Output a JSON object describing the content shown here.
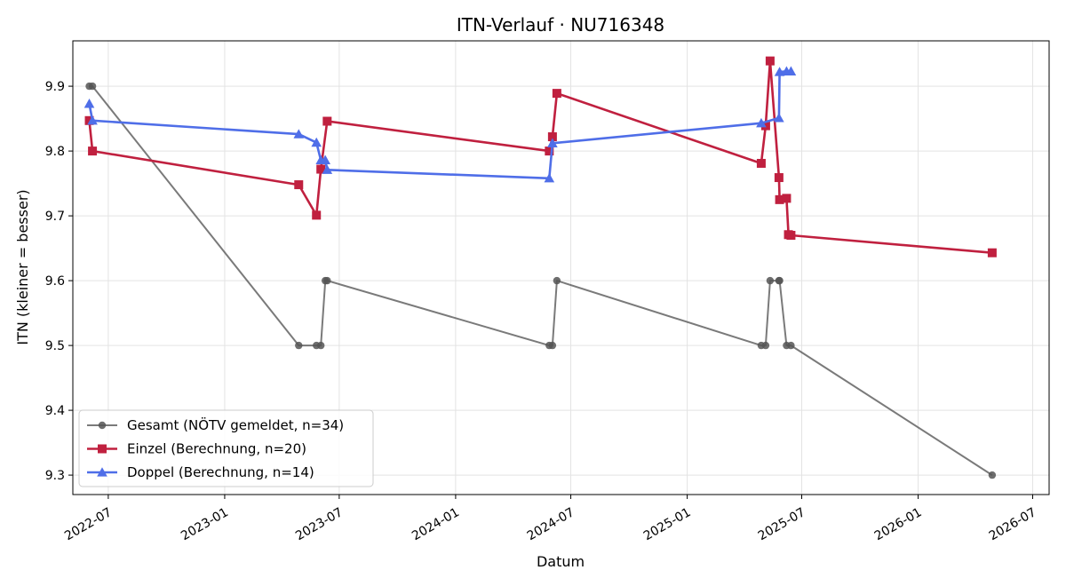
{
  "chart_data": {
    "type": "line",
    "title": "ITN-Verlauf · NU716348",
    "xlabel": "Datum",
    "ylabel": "ITN  (kleiner = besser)",
    "x_ticks": [
      "2022-07",
      "2023-01",
      "2023-07",
      "2024-01",
      "2024-07",
      "2025-01",
      "2025-07",
      "2026-01",
      "2026-07"
    ],
    "y_ticks": [
      "9.3",
      "9.4",
      "9.5",
      "9.6",
      "9.7",
      "9.8",
      "9.9"
    ],
    "ylim": [
      9.27,
      9.97
    ],
    "xlim": [
      "2022-05-06",
      "2026-07-27"
    ],
    "grid": true,
    "legend_position": "lower-left",
    "series": [
      {
        "name": "Gesamt (NÖTV gemeldet, n=34)",
        "color": "#555555",
        "marker": "circle",
        "x": [
          "2022-06-01",
          "2022-06-06",
          "2023-04-28",
          "2023-05-26",
          "2023-06-02",
          "2023-06-09",
          "2023-06-12",
          "2024-05-28",
          "2024-06-02",
          "2024-06-09",
          "2025-04-28",
          "2025-05-05",
          "2025-05-12",
          "2025-05-26",
          "2025-05-27",
          "2025-06-07",
          "2025-06-14",
          "2026-04-28"
        ],
        "values": [
          9.9,
          9.9,
          9.5,
          9.5,
          9.5,
          9.6,
          9.6,
          9.5,
          9.5,
          9.6,
          9.5,
          9.5,
          9.6,
          9.6,
          9.6,
          9.5,
          9.5,
          9.3
        ]
      },
      {
        "name": "Einzel (Berechnung, n=20)",
        "color": "#c0203f",
        "marker": "square",
        "x": [
          "2022-06-01",
          "2022-06-06",
          "2023-04-28",
          "2023-05-26",
          "2023-06-02",
          "2023-06-12",
          "2024-05-28",
          "2024-06-02",
          "2024-06-09",
          "2025-04-28",
          "2025-05-05",
          "2025-05-12",
          "2025-05-26",
          "2025-05-27",
          "2025-06-07",
          "2025-06-10",
          "2025-06-14",
          "2026-04-28"
        ],
        "values": [
          9.847,
          9.8,
          9.748,
          9.701,
          9.772,
          9.846,
          9.8,
          9.822,
          9.889,
          9.781,
          9.839,
          9.939,
          9.759,
          9.725,
          9.727,
          9.671,
          9.67,
          9.643
        ]
      },
      {
        "name": "Doppel (Berechnung, n=14)",
        "color": "#4f6ee8",
        "marker": "triangle",
        "x": [
          "2022-06-01",
          "2022-06-06",
          "2023-04-28",
          "2023-05-26",
          "2023-06-02",
          "2023-06-09",
          "2023-06-12",
          "2024-05-28",
          "2024-06-02",
          "2025-04-28",
          "2025-05-26",
          "2025-05-27",
          "2025-06-07",
          "2025-06-14"
        ],
        "values": [
          9.873,
          9.847,
          9.826,
          9.813,
          9.786,
          9.786,
          9.771,
          9.758,
          9.812,
          9.843,
          9.851,
          9.922,
          9.923,
          9.923
        ]
      }
    ]
  }
}
